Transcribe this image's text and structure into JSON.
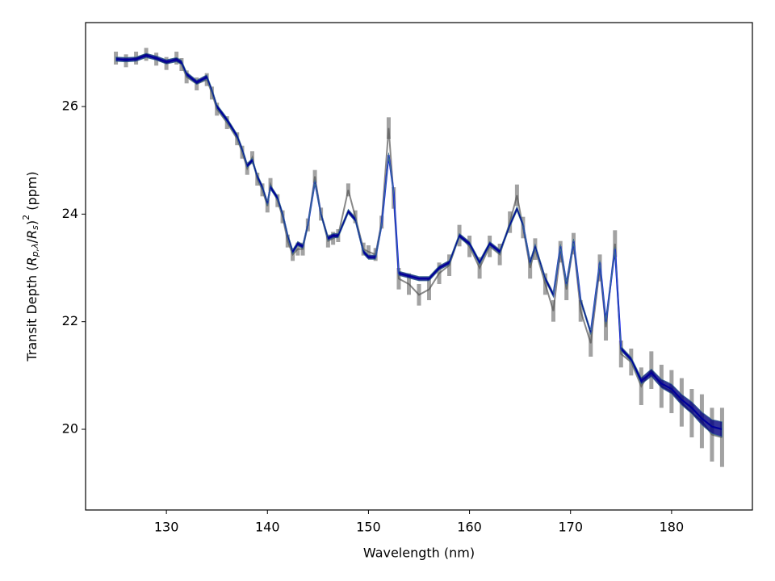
{
  "chart_data": {
    "type": "errorbar",
    "xlabel": "Wavelength (nm)",
    "ylabel_parts": [
      "Transit Depth (",
      "R",
      "p,λ",
      "/",
      "R",
      "s",
      ")",
      "2",
      " (ppm)"
    ],
    "x": [
      125,
      126,
      127,
      128,
      129,
      130,
      131,
      131.5,
      132,
      133,
      134,
      134.5,
      135,
      136,
      137,
      137.5,
      138,
      138.5,
      139,
      139.5,
      140,
      140.3,
      141,
      141.5,
      142,
      142.5,
      143,
      143.5,
      144,
      144.7,
      145.3,
      146,
      146.5,
      147,
      148,
      148.7,
      149.5,
      150,
      150.7,
      151.3,
      152,
      152.5,
      153,
      154,
      155,
      156,
      157,
      158,
      159,
      160,
      161,
      162,
      163,
      164,
      164.7,
      165.3,
      166,
      166.5,
      167.5,
      168.3,
      169,
      169.6,
      170.3,
      171,
      172,
      172.9,
      173.5,
      174.4,
      175,
      176,
      177,
      178,
      179,
      180,
      181,
      182,
      183,
      184,
      185
    ],
    "series": [
      {
        "color": "#555555",
        "values": [
          26.9,
          26.85,
          26.9,
          26.97,
          26.88,
          26.8,
          26.9,
          26.78,
          26.55,
          26.42,
          26.5,
          26.25,
          25.95,
          25.7,
          25.4,
          25.15,
          24.85,
          25.05,
          24.65,
          24.45,
          24.15,
          24.55,
          24.25,
          23.95,
          23.5,
          23.25,
          23.35,
          23.35,
          23.8,
          24.7,
          24.0,
          23.5,
          23.55,
          23.6,
          24.45,
          23.95,
          23.35,
          23.3,
          23.25,
          23.85,
          25.6,
          24.3,
          22.8,
          22.7,
          22.5,
          22.6,
          22.9,
          23.05,
          23.6,
          23.4,
          23.0,
          23.4,
          23.25,
          23.85,
          24.35,
          23.75,
          23.0,
          23.35,
          22.7,
          22.2,
          23.3,
          22.6,
          23.45,
          22.2,
          21.6,
          23.0,
          21.9,
          23.45,
          21.4,
          21.25,
          20.8,
          21.1,
          20.8,
          20.7,
          20.5,
          20.3,
          20.15,
          19.9,
          19.85
        ],
        "errors": [
          0.12,
          0.12,
          0.12,
          0.12,
          0.12,
          0.12,
          0.12,
          0.12,
          0.12,
          0.12,
          0.12,
          0.12,
          0.12,
          0.12,
          0.12,
          0.12,
          0.12,
          0.12,
          0.12,
          0.12,
          0.12,
          0.12,
          0.12,
          0.12,
          0.12,
          0.12,
          0.12,
          0.12,
          0.12,
          0.12,
          0.12,
          0.12,
          0.12,
          0.12,
          0.12,
          0.12,
          0.12,
          0.12,
          0.12,
          0.12,
          0.2,
          0.2,
          0.2,
          0.2,
          0.2,
          0.2,
          0.2,
          0.2,
          0.2,
          0.2,
          0.2,
          0.2,
          0.2,
          0.2,
          0.2,
          0.2,
          0.2,
          0.2,
          0.2,
          0.2,
          0.2,
          0.2,
          0.2,
          0.2,
          0.25,
          0.25,
          0.25,
          0.25,
          0.25,
          0.25,
          0.35,
          0.35,
          0.4,
          0.4,
          0.45,
          0.45,
          0.5,
          0.5,
          0.55
        ]
      },
      {
        "color": "#0000ff",
        "band_color": "#00007f",
        "values": [
          26.88,
          26.87,
          26.88,
          26.95,
          26.9,
          26.83,
          26.87,
          26.82,
          26.6,
          26.45,
          26.55,
          26.3,
          26.0,
          25.75,
          25.45,
          25.2,
          24.9,
          25.0,
          24.7,
          24.5,
          24.2,
          24.5,
          24.3,
          24.0,
          23.6,
          23.3,
          23.45,
          23.4,
          23.8,
          24.6,
          24.0,
          23.55,
          23.6,
          23.6,
          24.05,
          23.9,
          23.3,
          23.2,
          23.2,
          23.8,
          25.1,
          24.4,
          22.9,
          22.85,
          22.8,
          22.8,
          23.0,
          23.1,
          23.6,
          23.45,
          23.1,
          23.45,
          23.3,
          23.8,
          24.1,
          23.8,
          23.1,
          23.4,
          22.8,
          22.5,
          23.4,
          22.7,
          23.5,
          22.4,
          21.8,
          23.1,
          22.0,
          23.35,
          21.5,
          21.3,
          20.9,
          21.05,
          20.85,
          20.75,
          20.55,
          20.4,
          20.2,
          20.05,
          20.0
        ],
        "errors": [
          0.04,
          0.04,
          0.04,
          0.04,
          0.04,
          0.04,
          0.04,
          0.04,
          0.04,
          0.04,
          0.04,
          0.04,
          0.04,
          0.04,
          0.04,
          0.04,
          0.04,
          0.04,
          0.04,
          0.04,
          0.04,
          0.04,
          0.04,
          0.04,
          0.04,
          0.04,
          0.04,
          0.04,
          0.04,
          0.04,
          0.04,
          0.04,
          0.04,
          0.04,
          0.04,
          0.04,
          0.04,
          0.04,
          0.04,
          0.04,
          0.04,
          0.04,
          0.04,
          0.04,
          0.04,
          0.04,
          0.04,
          0.04,
          0.04,
          0.04,
          0.04,
          0.04,
          0.04,
          0.04,
          0.04,
          0.04,
          0.04,
          0.04,
          0.04,
          0.04,
          0.04,
          0.04,
          0.04,
          0.04,
          0.04,
          0.04,
          0.04,
          0.04,
          0.04,
          0.04,
          0.06,
          0.07,
          0.08,
          0.09,
          0.1,
          0.11,
          0.12,
          0.13,
          0.14
        ]
      }
    ],
    "xlim": [
      122,
      188
    ],
    "ylim": [
      18.5,
      27.56
    ],
    "xticks": [
      130,
      140,
      150,
      160,
      170,
      180
    ],
    "yticks": [
      20,
      22,
      24,
      26
    ]
  }
}
